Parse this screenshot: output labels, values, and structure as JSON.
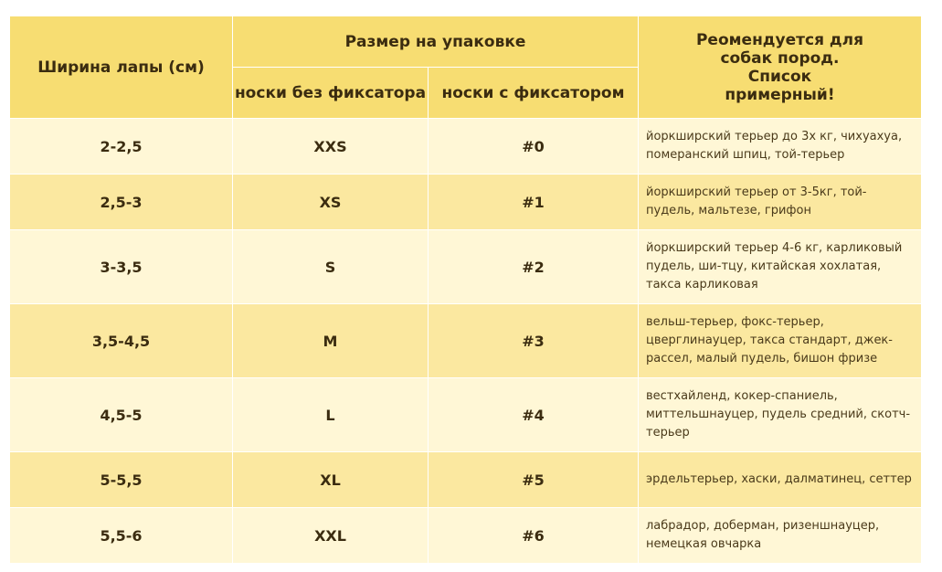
{
  "header": {
    "paw_width": "Ширина лапы (см)",
    "package_size": "Размер на упаковке",
    "no_fix": "носки без фиксатора",
    "with_fix": "носки с фиксатором",
    "breeds": "Реомендуется для собак пород. Список примерный!"
  },
  "rows": [
    {
      "paw": "2-2,5",
      "no_fix": "XXS",
      "with_fix": "#0",
      "breeds": "йоркширский терьер до 3х кг, чихуахуа, померанский шпиц, той-терьер"
    },
    {
      "paw": "2,5-3",
      "no_fix": "XS",
      "with_fix": "#1",
      "breeds": "йоркширский терьер от 3-5кг, той-пудель, мальтезе, грифон"
    },
    {
      "paw": "3-3,5",
      "no_fix": "S",
      "with_fix": "#2",
      "breeds": "йоркширский терьер 4-6 кг, карликовый пудель, ши-тцу, китайская хохлатая, такса карликовая"
    },
    {
      "paw": "3,5-4,5",
      "no_fix": "M",
      "with_fix": "#3",
      "breeds": "вельш-терьер, фокс-терьер, цверглинауцер, такса стандарт, джек-рассел, малый пудель, бишон фризе"
    },
    {
      "paw": "4,5-5",
      "no_fix": "L",
      "with_fix": "#4",
      "breeds": "вестхайленд, кокер-спаниель, миттельшнауцер, пудель средний, скотч-терьер"
    },
    {
      "paw": "5-5,5",
      "no_fix": "XL",
      "with_fix": "#5",
      "breeds": "эрдельтерьер, хаски, далматинец, сеттер"
    },
    {
      "paw": "5,5-6",
      "no_fix": "XXL",
      "with_fix": "#6",
      "breeds": "лабрадор, доберман, ризеншнауцер, немецкая овчарка"
    }
  ]
}
